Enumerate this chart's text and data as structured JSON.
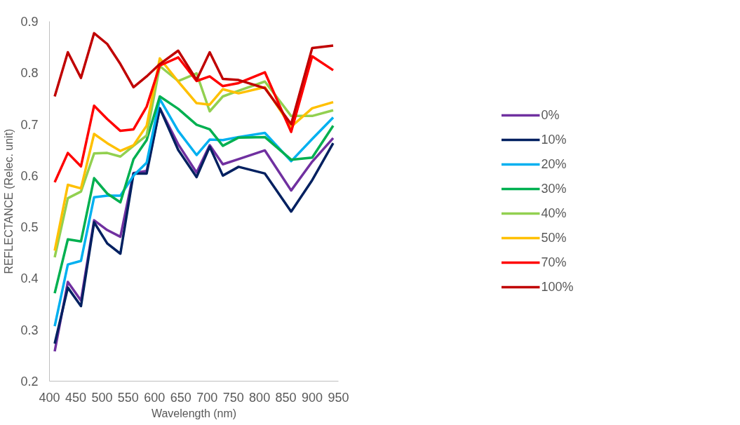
{
  "chart_data": {
    "type": "line",
    "xlabel": "Wavelength (nm)",
    "ylabel": "REFLECTANCE (Relec. unit)",
    "x": [
      410,
      435,
      460,
      485,
      510,
      535,
      560,
      585,
      610,
      645,
      680,
      705,
      730,
      760,
      810,
      860,
      900,
      940
    ],
    "xlim": [
      400,
      950
    ],
    "xticks": [
      400,
      450,
      500,
      550,
      600,
      650,
      700,
      750,
      800,
      850,
      900,
      950
    ],
    "ylim": [
      0.2,
      0.9
    ],
    "yticks": [
      0.2,
      0.3,
      0.4,
      0.5,
      0.6,
      0.7,
      0.8,
      0.9
    ],
    "grid": false,
    "legend": "right",
    "marker": "none",
    "line_style": "solid",
    "series": [
      {
        "name": "0%",
        "color": "#7030a0",
        "values": [
          0.258,
          0.393,
          0.357,
          0.513,
          0.494,
          0.481,
          0.605,
          0.609,
          0.731,
          0.661,
          0.606,
          0.659,
          0.622,
          0.632,
          0.649,
          0.571,
          0.627,
          0.673
        ]
      },
      {
        "name": "10%",
        "color": "#002060",
        "values": [
          0.273,
          0.382,
          0.346,
          0.509,
          0.468,
          0.448,
          0.604,
          0.604,
          0.731,
          0.65,
          0.597,
          0.656,
          0.6,
          0.617,
          0.604,
          0.53,
          0.591,
          0.663
        ]
      },
      {
        "name": "20%",
        "color": "#00b0f0",
        "values": [
          0.307,
          0.427,
          0.434,
          0.558,
          0.561,
          0.561,
          0.6,
          0.625,
          0.749,
          0.687,
          0.64,
          0.67,
          0.669,
          0.675,
          0.683,
          0.628,
          0.671,
          0.713
        ]
      },
      {
        "name": "30%",
        "color": "#00b050",
        "values": [
          0.371,
          0.476,
          0.472,
          0.595,
          0.565,
          0.548,
          0.632,
          0.669,
          0.754,
          0.73,
          0.699,
          0.69,
          0.658,
          0.674,
          0.675,
          0.631,
          0.635,
          0.697
        ]
      },
      {
        "name": "40%",
        "color": "#92d050",
        "values": [
          0.441,
          0.556,
          0.569,
          0.643,
          0.644,
          0.637,
          0.658,
          0.678,
          0.813,
          0.784,
          0.799,
          0.725,
          0.754,
          0.765,
          0.783,
          0.716,
          0.716,
          0.727
        ]
      },
      {
        "name": "50%",
        "color": "#ffc000",
        "values": [
          0.454,
          0.582,
          0.575,
          0.681,
          0.663,
          0.648,
          0.659,
          0.697,
          0.828,
          0.783,
          0.741,
          0.738,
          0.768,
          0.76,
          0.772,
          0.695,
          0.731,
          0.743
        ]
      },
      {
        "name": "70%",
        "color": "#ff0000",
        "values": [
          0.587,
          0.644,
          0.618,
          0.736,
          0.71,
          0.687,
          0.69,
          0.734,
          0.814,
          0.83,
          0.784,
          0.793,
          0.774,
          0.78,
          0.801,
          0.685,
          0.832,
          0.805
        ]
      },
      {
        "name": "100%",
        "color": "#c00000",
        "values": [
          0.754,
          0.84,
          0.79,
          0.877,
          0.856,
          0.817,
          0.772,
          0.793,
          0.817,
          0.843,
          0.786,
          0.84,
          0.788,
          0.786,
          0.77,
          0.7,
          0.848,
          0.853
        ]
      }
    ]
  }
}
